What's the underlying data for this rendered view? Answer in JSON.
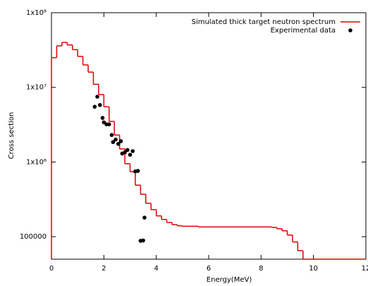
{
  "chart_data": {
    "type": "step-scatter",
    "xlabel": "Energy(MeV)",
    "ylabel": "Cross section",
    "xlim": [
      0,
      12
    ],
    "xticks": [
      0,
      2,
      4,
      6,
      8,
      10,
      12
    ],
    "ylim": [
      50000,
      100000000
    ],
    "yticks": [
      {
        "value": 100000,
        "label": "100000"
      },
      {
        "value": 1000000,
        "label": "1x10⁶"
      },
      {
        "value": 10000000,
        "label": "1x10⁷"
      },
      {
        "value": 100000000,
        "label": "1x10⁸"
      }
    ],
    "log_y": true,
    "legend": "top-right",
    "series": [
      {
        "name": "Simulated thick target neutron spectrum",
        "kind": "step",
        "color": "#e00000",
        "x": [
          0,
          0.2,
          0.4,
          0.6,
          0.8,
          1.0,
          1.2,
          1.4,
          1.6,
          1.8,
          2.0,
          2.2,
          2.4,
          2.6,
          2.8,
          3.0,
          3.2,
          3.4,
          3.6,
          3.8,
          4.0,
          4.2,
          4.4,
          4.6,
          4.8,
          5.0,
          5.6,
          8.4,
          8.6,
          8.8,
          9.0,
          9.2,
          9.4,
          9.6,
          12
        ],
        "values": [
          25000000,
          36000000,
          40000000,
          37000000,
          32000000,
          26000000,
          20000000,
          16000000,
          11000000,
          8000000,
          5500000,
          3500000,
          2300000,
          1500000,
          950000,
          740000,
          490000,
          370000,
          280000,
          230000,
          190000,
          170000,
          155000,
          145000,
          140000,
          138000,
          135000,
          133000,
          128000,
          120000,
          105000,
          85000,
          65000,
          50000,
          50000
        ]
      },
      {
        "name": "Experimental data",
        "kind": "points",
        "color": "#000000",
        "x": [
          1.65,
          1.75,
          1.85,
          1.95,
          2.0,
          2.1,
          2.2,
          2.3,
          2.35,
          2.45,
          2.55,
          2.65,
          2.7,
          2.8,
          2.9,
          3.0,
          3.1,
          3.2,
          3.3,
          3.4,
          3.5,
          3.55
        ],
        "values": [
          5500000,
          7500000,
          5800000,
          3900000,
          3400000,
          3200000,
          3200000,
          2300000,
          1850000,
          2000000,
          1750000,
          1900000,
          1300000,
          1350000,
          1450000,
          1250000,
          1400000,
          750000,
          760000,
          88000,
          89000,
          180000
        ]
      }
    ]
  }
}
